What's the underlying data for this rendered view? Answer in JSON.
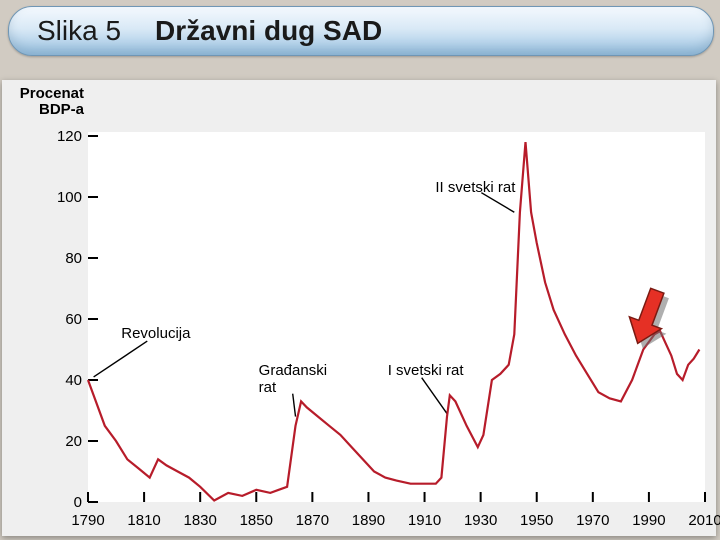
{
  "title": {
    "left": "Slika 5",
    "right": "Državni dug SAD"
  },
  "chart": {
    "type": "line",
    "ylabel_line1": "Procenat",
    "ylabel_line2": "BDP-a",
    "yticks": [
      120,
      100,
      80,
      60,
      40,
      20,
      0
    ],
    "xticks": [
      1790,
      1810,
      1830,
      1850,
      1870,
      1890,
      1910,
      1930,
      1950,
      1970,
      1990,
      2010
    ],
    "xlim": [
      1790,
      2010
    ],
    "ylim": [
      0,
      120
    ],
    "line_color": "#b71c2a",
    "line_width": 2.2,
    "plot_bg": "#ffffff",
    "panel_bg": "#efefef",
    "page_bg": "#d1cbc2",
    "series": [
      {
        "x": 1790,
        "y": 40
      },
      {
        "x": 1792,
        "y": 35
      },
      {
        "x": 1796,
        "y": 25
      },
      {
        "x": 1800,
        "y": 20
      },
      {
        "x": 1804,
        "y": 14
      },
      {
        "x": 1808,
        "y": 11
      },
      {
        "x": 1812,
        "y": 8
      },
      {
        "x": 1815,
        "y": 14
      },
      {
        "x": 1818,
        "y": 12
      },
      {
        "x": 1822,
        "y": 10
      },
      {
        "x": 1826,
        "y": 8
      },
      {
        "x": 1830,
        "y": 5
      },
      {
        "x": 1835,
        "y": 0.5
      },
      {
        "x": 1840,
        "y": 3
      },
      {
        "x": 1845,
        "y": 2
      },
      {
        "x": 1850,
        "y": 4
      },
      {
        "x": 1855,
        "y": 3
      },
      {
        "x": 1858,
        "y": 4
      },
      {
        "x": 1861,
        "y": 5
      },
      {
        "x": 1864,
        "y": 25
      },
      {
        "x": 1866,
        "y": 33
      },
      {
        "x": 1868,
        "y": 31
      },
      {
        "x": 1872,
        "y": 28
      },
      {
        "x": 1876,
        "y": 25
      },
      {
        "x": 1880,
        "y": 22
      },
      {
        "x": 1884,
        "y": 18
      },
      {
        "x": 1888,
        "y": 14
      },
      {
        "x": 1892,
        "y": 10
      },
      {
        "x": 1896,
        "y": 8
      },
      {
        "x": 1900,
        "y": 7
      },
      {
        "x": 1905,
        "y": 6
      },
      {
        "x": 1910,
        "y": 6
      },
      {
        "x": 1914,
        "y": 6
      },
      {
        "x": 1916,
        "y": 8
      },
      {
        "x": 1918,
        "y": 28
      },
      {
        "x": 1919,
        "y": 35
      },
      {
        "x": 1921,
        "y": 33
      },
      {
        "x": 1925,
        "y": 25
      },
      {
        "x": 1929,
        "y": 18
      },
      {
        "x": 1931,
        "y": 22
      },
      {
        "x": 1934,
        "y": 40
      },
      {
        "x": 1937,
        "y": 42
      },
      {
        "x": 1940,
        "y": 45
      },
      {
        "x": 1942,
        "y": 55
      },
      {
        "x": 1944,
        "y": 95
      },
      {
        "x": 1946,
        "y": 118
      },
      {
        "x": 1948,
        "y": 95
      },
      {
        "x": 1950,
        "y": 85
      },
      {
        "x": 1953,
        "y": 72
      },
      {
        "x": 1956,
        "y": 63
      },
      {
        "x": 1960,
        "y": 55
      },
      {
        "x": 1964,
        "y": 48
      },
      {
        "x": 1968,
        "y": 42
      },
      {
        "x": 1972,
        "y": 36
      },
      {
        "x": 1976,
        "y": 34
      },
      {
        "x": 1980,
        "y": 33
      },
      {
        "x": 1984,
        "y": 40
      },
      {
        "x": 1988,
        "y": 50
      },
      {
        "x": 1992,
        "y": 55
      },
      {
        "x": 1994,
        "y": 56
      },
      {
        "x": 1996,
        "y": 52
      },
      {
        "x": 1998,
        "y": 48
      },
      {
        "x": 2000,
        "y": 42
      },
      {
        "x": 2002,
        "y": 40
      },
      {
        "x": 2004,
        "y": 45
      },
      {
        "x": 2006,
        "y": 47
      },
      {
        "x": 2008,
        "y": 50
      }
    ],
    "annotations": [
      {
        "id": "revolucija",
        "text": "Revolucija",
        "at_year": 1804,
        "at_val": 58,
        "line_to_year": 1792,
        "line_to_val": 41
      },
      {
        "id": "gradjanski",
        "text": "Građanski rat",
        "at_year": 1853,
        "at_val": 46,
        "line_to_year": 1864,
        "line_to_val": 28,
        "text_lines": [
          "Građanski",
          "rat"
        ]
      },
      {
        "id": "ww1",
        "text": "I svetski rat",
        "at_year": 1899,
        "at_val": 46,
        "line_to_year": 1918,
        "line_to_val": 29
      },
      {
        "id": "ww2",
        "text": "II svetski rat",
        "at_year": 1916,
        "at_val": 106,
        "line_to_year": 1942,
        "line_to_val": 95
      }
    ],
    "arrow": {
      "tip_year": 1986,
      "tip_val": 52,
      "color_fill": "#e53025",
      "color_edge": "#7a1a12",
      "shadow": "#6d6d6d"
    }
  }
}
